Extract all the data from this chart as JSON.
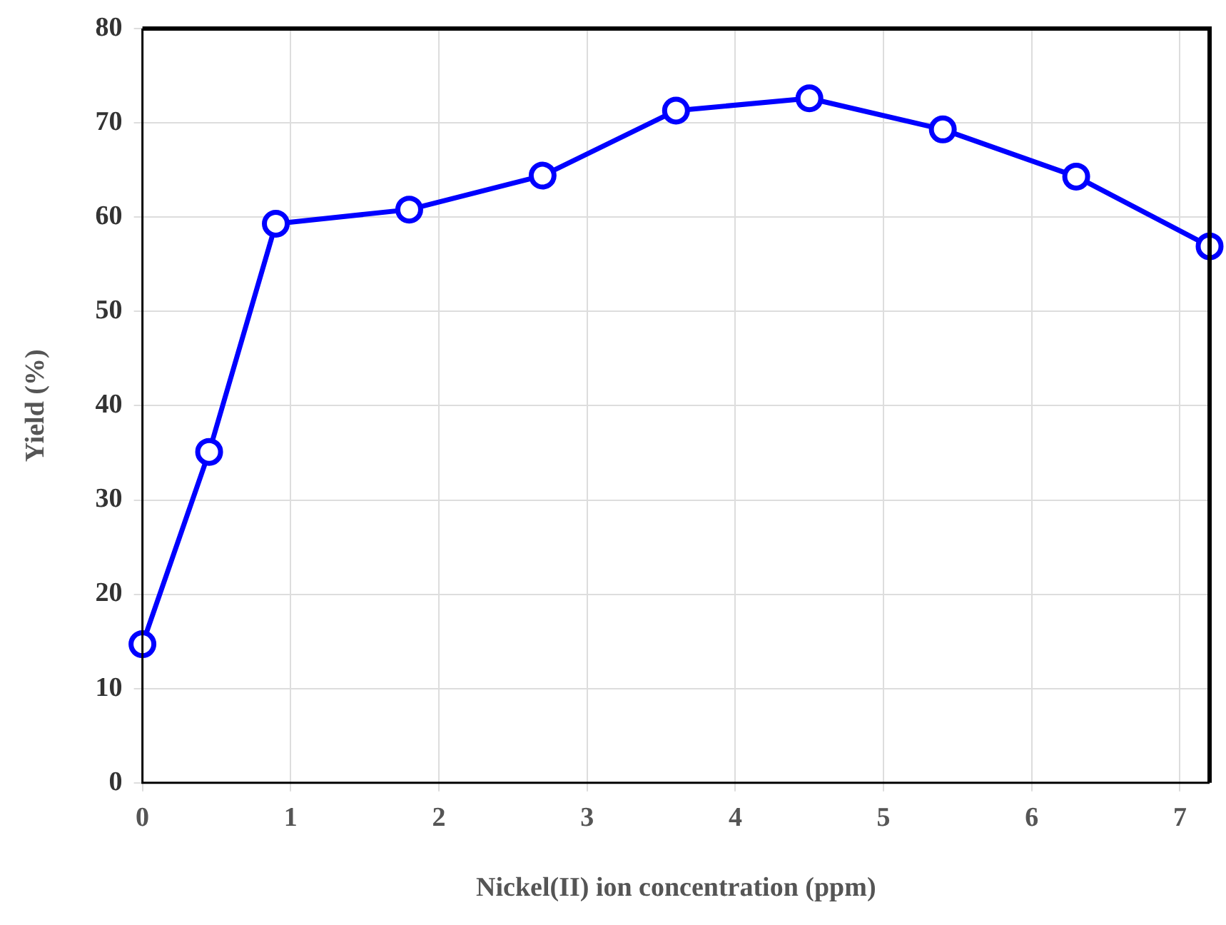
{
  "chart_data": {
    "type": "line",
    "xlabel": "Nickel(II) ion concentration (ppm)",
    "ylabel": "Yield (%)",
    "x": [
      0,
      0.45,
      0.9,
      1.8,
      2.7,
      3.6,
      4.5,
      5.4,
      6.3,
      7.2
    ],
    "series": [
      {
        "color": "#0000ff",
        "values": [
          14.7,
          35.1,
          59.3,
          60.8,
          64.4,
          71.3,
          72.6,
          69.3,
          64.3,
          56.9
        ]
      }
    ],
    "xlim": [
      0,
      7.2
    ],
    "xticks": [
      0,
      1,
      2,
      3,
      4,
      5,
      6,
      7
    ],
    "ylim": [
      0,
      80
    ],
    "yticks": [
      0,
      10,
      20,
      30,
      40,
      50,
      60,
      70,
      80
    ],
    "grid": true,
    "marker": "circle",
    "line_style": "solid",
    "legend": false
  }
}
